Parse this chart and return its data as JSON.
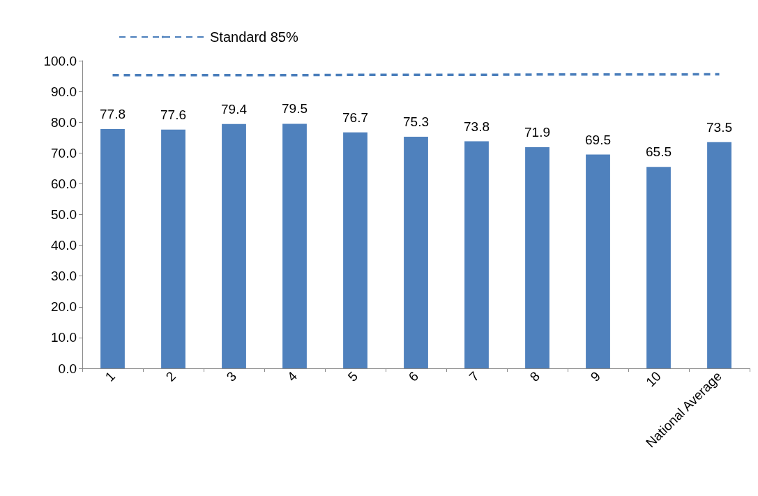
{
  "chart_data": {
    "type": "bar",
    "categories": [
      "1",
      "2",
      "3",
      "4",
      "5",
      "6",
      "7",
      "8",
      "9",
      "10",
      "National Average"
    ],
    "series": [
      {
        "color": "#4f81bd",
        "values": [
          77.8,
          77.6,
          79.4,
          79.5,
          76.7,
          75.3,
          73.8,
          71.9,
          69.5,
          65.5,
          73.5
        ],
        "value_labels": [
          "77.8",
          "77.6",
          "79.4",
          "79.5",
          "76.7",
          "75.3",
          "73.8",
          "71.9",
          "69.5",
          "65.5",
          "73.5"
        ]
      },
      {
        "type": "line",
        "name": "Standard 85%",
        "color": "#4a7ebb",
        "line_style": "dashed",
        "marker": "none",
        "values": [
          95.3,
          95.3,
          95.3,
          95.3,
          95.4,
          95.4,
          95.4,
          95.5,
          95.5,
          95.5,
          95.6
        ]
      }
    ],
    "ylim": [
      0,
      100
    ],
    "yticks": [
      {
        "value": 0,
        "label": "0.0"
      },
      {
        "value": 10,
        "label": "10.0"
      },
      {
        "value": 20,
        "label": "20.0"
      },
      {
        "value": 30,
        "label": "30.0"
      },
      {
        "value": 40,
        "label": "40.0"
      },
      {
        "value": 50,
        "label": "50.0"
      },
      {
        "value": 60,
        "label": "60.0"
      },
      {
        "value": 70,
        "label": "70.0"
      },
      {
        "value": 80,
        "label": "80.0"
      },
      {
        "value": 90,
        "label": "90.0"
      },
      {
        "value": 100,
        "label": "100.0"
      }
    ],
    "grid": false,
    "legend": "top left"
  }
}
